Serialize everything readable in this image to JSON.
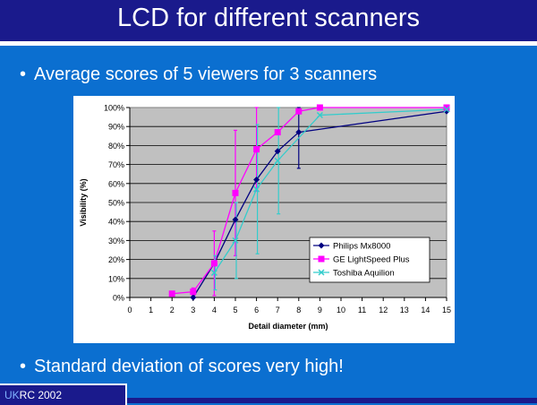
{
  "slide": {
    "title": "LCD for different scanners",
    "bullets": [
      "Average scores of 5 viewers for 3 scanners",
      "Standard deviation of scores very high!"
    ],
    "bullet_glyph": "•",
    "footer_uk": "UK",
    "footer_rest": "RC 2002"
  },
  "colors": {
    "background": "#0b6fd0",
    "title_bar": "#1a1a8c",
    "plot_area": "#c0c0c0",
    "philips": "#000080",
    "ge": "#ff00ff",
    "toshiba": "#33cccc"
  },
  "chart_data": {
    "type": "line",
    "title": "",
    "xlabel": "Detail diameter (mm)",
    "ylabel": "Visibility (%)",
    "xlim": [
      0,
      15
    ],
    "ylim": [
      0,
      100
    ],
    "x_ticks": [
      "0",
      "1",
      "2",
      "3",
      "4",
      "5",
      "6",
      "7",
      "8",
      "9",
      "10",
      "11",
      "12",
      "13",
      "14",
      "15"
    ],
    "y_ticks": [
      "0%",
      "10%",
      "20%",
      "30%",
      "40%",
      "50%",
      "60%",
      "70%",
      "80%",
      "90%",
      "100%"
    ],
    "grid": true,
    "legend_position": "bottom-right",
    "series": [
      {
        "name": "Philips Mx8000",
        "color": "#000080",
        "marker": "diamond",
        "x": [
          3,
          4,
          5,
          6,
          7,
          8,
          15
        ],
        "y": [
          0,
          18,
          41,
          62,
          77,
          87,
          98
        ],
        "err": [
          0,
          0,
          0,
          0,
          0,
          19,
          0
        ]
      },
      {
        "name": "GE LightSpeed Plus",
        "color": "#ff00ff",
        "marker": "square",
        "x": [
          2,
          3,
          4,
          5,
          6,
          7,
          8,
          9,
          15
        ],
        "y": [
          2,
          3,
          18,
          55,
          78,
          87,
          98,
          100,
          100
        ],
        "err": [
          0,
          2,
          17,
          33,
          22,
          0,
          0,
          0,
          0
        ]
      },
      {
        "name": "Toshiba Aquilion",
        "color": "#33cccc",
        "marker": "x",
        "x": [
          4,
          5,
          6,
          7,
          9,
          15
        ],
        "y": [
          13,
          30,
          57,
          72,
          96,
          99
        ],
        "err": [
          9,
          20,
          34,
          28,
          0,
          0
        ]
      }
    ]
  }
}
